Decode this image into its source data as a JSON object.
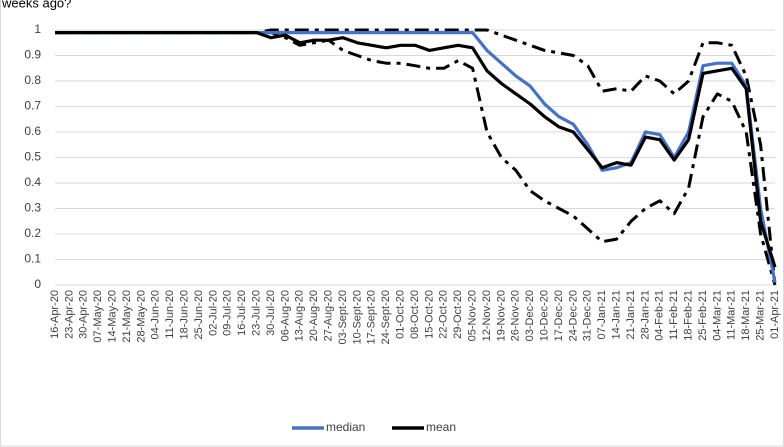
{
  "chart_data": {
    "type": "line",
    "title": "weeks ago?",
    "categories": [
      "16-Apr-20",
      "23-Apr-20",
      "30-Apr-20",
      "07-May-20",
      "14-May-20",
      "21-May-20",
      "28-May-20",
      "04-Jun-20",
      "11-Jun-20",
      "18-Jun-20",
      "25-Jun-20",
      "02-Jul-20",
      "09-Jul-20",
      "16-Jul-20",
      "23-Jul-20",
      "30-Jul-20",
      "06-Aug-20",
      "13-Aug-20",
      "20-Aug-20",
      "27-Aug-20",
      "03-Sept-20",
      "10-Sept-20",
      "17-Sept-20",
      "24-Sept-20",
      "01-Oct-20",
      "08-Oct-20",
      "15-Oct-20",
      "22-Oct-20",
      "29-Oct-20",
      "05-Nov-20",
      "12-Nov-20",
      "19-Nov-20",
      "26-Nov-20",
      "03-Dec-20",
      "10-Dec-20",
      "17-Dec-20",
      "24-Dec-20",
      "31-Dec-20",
      "07-Jan-21",
      "14-Jan-21",
      "21-Jan-21",
      "28-Jan-21",
      "04-Feb-21",
      "11-Feb-21",
      "18-Feb-21",
      "25-Feb-21",
      "04-Mar-21",
      "11-Mar-21",
      "18-Mar-21",
      "25-Mar-21",
      "01-Apr-21"
    ],
    "series": [
      {
        "color": "#000000",
        "dash": "dash-dot",
        "values": [
          0.99,
          0.99,
          0.99,
          0.99,
          0.99,
          0.99,
          0.99,
          0.99,
          0.99,
          0.99,
          0.99,
          0.99,
          0.99,
          0.99,
          0.99,
          1,
          1,
          1,
          1,
          1,
          1,
          1,
          1,
          1,
          1,
          1,
          1,
          1,
          1,
          1,
          1,
          0.98,
          0.96,
          0.94,
          0.92,
          0.91,
          0.9,
          0.86,
          0.76,
          0.77,
          0.76,
          0.82,
          0.8,
          0.75,
          0.8,
          0.95,
          0.95,
          0.94,
          0.82,
          0.55,
          0
        ]
      },
      {
        "color": "#000000",
        "dash": "dash-dot",
        "values": [
          0.99,
          0.99,
          0.99,
          0.99,
          0.99,
          0.99,
          0.99,
          0.99,
          0.99,
          0.99,
          0.99,
          0.99,
          0.99,
          0.99,
          0.99,
          0.99,
          0.97,
          0.94,
          0.95,
          0.96,
          0.92,
          0.9,
          0.88,
          0.87,
          0.87,
          0.86,
          0.85,
          0.85,
          0.88,
          0.85,
          0.6,
          0.5,
          0.45,
          0.37,
          0.33,
          0.3,
          0.27,
          0.22,
          0.17,
          0.18,
          0.25,
          0.3,
          0.33,
          0.28,
          0.38,
          0.66,
          0.75,
          0.72,
          0.6,
          0.2,
          0
        ]
      },
      {
        "name": "median",
        "color": "#4472c4",
        "values": [
          0.99,
          0.99,
          0.99,
          0.99,
          0.99,
          0.99,
          0.99,
          0.99,
          0.99,
          0.99,
          0.99,
          0.99,
          0.99,
          0.99,
          0.99,
          0.99,
          0.99,
          0.99,
          0.99,
          0.99,
          0.99,
          0.99,
          0.99,
          0.99,
          0.99,
          0.99,
          0.99,
          0.99,
          0.99,
          0.99,
          0.92,
          0.87,
          0.82,
          0.78,
          0.71,
          0.66,
          0.63,
          0.55,
          0.45,
          0.46,
          0.48,
          0.6,
          0.59,
          0.5,
          0.6,
          0.86,
          0.87,
          0.87,
          0.78,
          0.3,
          0.01
        ]
      },
      {
        "name": "mean",
        "color": "#000000",
        "values": [
          0.99,
          0.99,
          0.99,
          0.99,
          0.99,
          0.99,
          0.99,
          0.99,
          0.99,
          0.99,
          0.99,
          0.99,
          0.99,
          0.99,
          0.99,
          0.97,
          0.98,
          0.95,
          0.96,
          0.96,
          0.97,
          0.95,
          0.94,
          0.93,
          0.94,
          0.94,
          0.92,
          0.93,
          0.94,
          0.93,
          0.84,
          0.79,
          0.75,
          0.71,
          0.66,
          0.62,
          0.6,
          0.53,
          0.46,
          0.48,
          0.47,
          0.58,
          0.57,
          0.49,
          0.57,
          0.83,
          0.84,
          0.85,
          0.77,
          0.25,
          0.07
        ]
      }
    ],
    "ylim": [
      0,
      1
    ],
    "yticks": [
      0,
      0.1,
      0.2,
      0.3,
      0.4,
      0.5,
      0.6,
      0.7,
      0.8,
      0.9,
      1
    ],
    "grid": true
  }
}
